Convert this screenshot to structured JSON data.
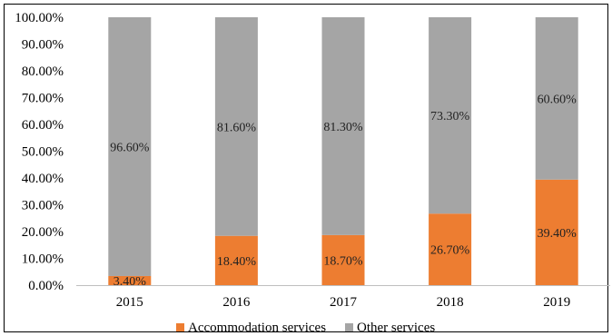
{
  "chart_data": {
    "type": "bar",
    "stacked": true,
    "categories": [
      "2015",
      "2016",
      "2017",
      "2018",
      "2019"
    ],
    "series": [
      {
        "name": "Accommodation services",
        "color": "#ed7d31",
        "values": [
          3.4,
          18.4,
          18.7,
          26.7,
          39.4
        ],
        "labels": [
          "3.40%",
          "18.40%",
          "18.70%",
          "26.70%",
          "39.40%"
        ]
      },
      {
        "name": "Other services",
        "color": "#a5a5a5",
        "values": [
          96.6,
          81.6,
          81.3,
          73.3,
          60.6
        ],
        "labels": [
          "96.60%",
          "81.60%",
          "81.30%",
          "73.30%",
          "60.60%"
        ]
      }
    ],
    "ylim": [
      0,
      100
    ],
    "yticks": [
      "0.00%",
      "10.00%",
      "20.00%",
      "30.00%",
      "40.00%",
      "50.00%",
      "60.00%",
      "70.00%",
      "80.00%",
      "90.00%",
      "100.00%"
    ],
    "grid": false,
    "legend": "bottom-center"
  }
}
